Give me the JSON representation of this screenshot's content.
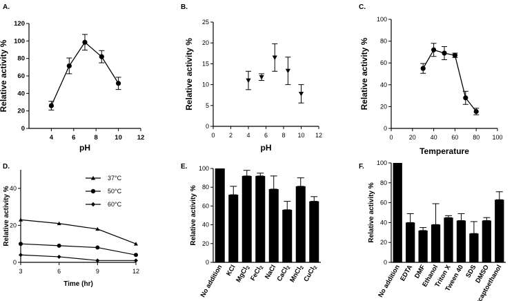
{
  "chart_data": [
    {
      "type": "line",
      "panel": "A.",
      "x": [
        4,
        5.6,
        7,
        8.5,
        10
      ],
      "y": [
        26,
        71.5,
        98.5,
        82,
        51.5
      ],
      "err": [
        5,
        9,
        9,
        7,
        7
      ],
      "xlabel": "pH",
      "ylabel": "Relative activity %",
      "xlim": [
        2,
        12
      ],
      "ylim": [
        0,
        120
      ],
      "xticks": [
        "4",
        "6",
        "8",
        "10",
        "12"
      ],
      "yticks": [
        "0",
        "20",
        "40",
        "60",
        "80",
        "100",
        "120"
      ]
    },
    {
      "type": "scatter",
      "panel": "B.",
      "x": [
        4,
        5.5,
        7,
        8.5,
        10
      ],
      "y": [
        11,
        11.8,
        16.5,
        13.3,
        7.8
      ],
      "err": [
        2.2,
        0.8,
        3.3,
        3.3,
        2.2
      ],
      "xlabel": "pH",
      "ylabel": "Relative activity %",
      "xlim": [
        0,
        12
      ],
      "ylim": [
        0,
        25
      ],
      "xticks": [
        "0",
        "2",
        "4",
        "6",
        "8",
        "10",
        "12"
      ],
      "yticks": [
        "0",
        "5",
        "10",
        "15",
        "20",
        "25"
      ]
    },
    {
      "type": "line",
      "panel": "C.",
      "x": [
        30,
        40,
        50,
        60,
        70,
        80
      ],
      "y": [
        55,
        72,
        69,
        67,
        28,
        15.5
      ],
      "err": [
        4.5,
        6,
        6,
        2,
        6,
        3
      ],
      "xlabel": "Temperature",
      "ylabel": "Relative activity %",
      "xlim": [
        0,
        100
      ],
      "ylim": [
        0,
        100
      ],
      "xticks": [
        "0",
        "20",
        "40",
        "60",
        "80",
        "100"
      ],
      "yticks": [
        "0",
        "20",
        "40",
        "60",
        "80",
        "100"
      ]
    },
    {
      "type": "line",
      "panel": "D.",
      "x": [
        3,
        6,
        9,
        12
      ],
      "series": [
        {
          "name": "37°C",
          "marker": "triangle",
          "values": [
            23,
            21,
            18,
            10
          ]
        },
        {
          "name": "50°C",
          "marker": "circle",
          "values": [
            10,
            9,
            8,
            4
          ]
        },
        {
          "name": "60°C",
          "marker": "diamond",
          "values": [
            4,
            3,
            1,
            1
          ]
        }
      ],
      "xlabel": "Time (hr)",
      "ylabel": "Relative activity %",
      "xlim": [
        3,
        12
      ],
      "ylim": [
        0,
        50
      ],
      "xticks": [
        "3",
        "6",
        "9",
        "12"
      ],
      "yticks": [
        "0",
        "20",
        "40"
      ],
      "legend": "top-right"
    },
    {
      "type": "bar",
      "panel": "E.",
      "categories": [
        "No addition",
        "KCl",
        "MgCl|2",
        "FeCl|2",
        "NaCl",
        "CaCl|2",
        "MnCl|2",
        "CuCl|2"
      ],
      "values": [
        100,
        72,
        92,
        92,
        78,
        56,
        81,
        65
      ],
      "err": [
        0,
        9,
        6,
        3,
        14,
        9,
        9,
        5
      ],
      "ylabel": "Relative activity %",
      "ylim": [
        0,
        100
      ],
      "yticks": [
        "0",
        "20",
        "40",
        "60",
        "80",
        "100"
      ]
    },
    {
      "type": "bar",
      "panel": "F.",
      "categories": [
        "No addition",
        "EDTA",
        "DMF",
        "Ethanol",
        "Triton X",
        "Tween 40",
        "SDS",
        "DMSO",
        "Mercaptoethanol"
      ],
      "values": [
        100,
        40,
        32,
        38,
        45,
        42,
        29,
        42,
        63
      ],
      "err": [
        0,
        9,
        3,
        21,
        2,
        7,
        12,
        3,
        8
      ],
      "ylabel": "Relative activity %",
      "ylim": [
        0,
        100
      ],
      "yticks": [
        "0",
        "20",
        "40",
        "60",
        "80",
        "100"
      ]
    }
  ]
}
